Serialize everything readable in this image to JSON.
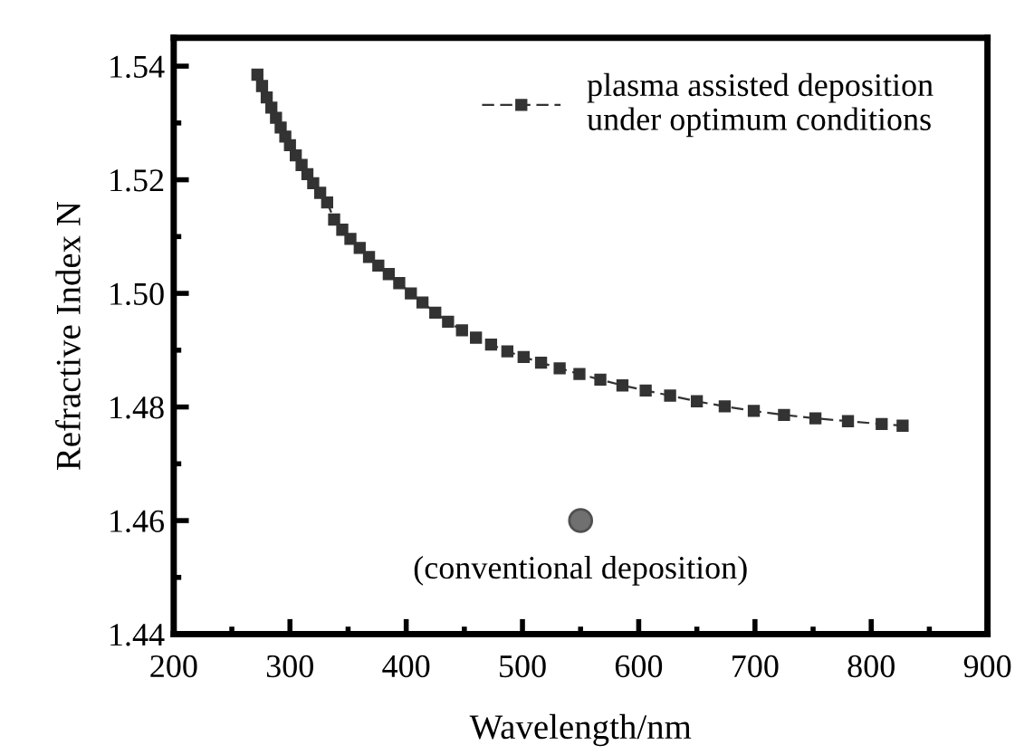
{
  "chart_data": {
    "type": "line",
    "xlabel": "Wavelength/nm",
    "ylabel": "Refractive Index N",
    "series": [
      {
        "name": "plasma assisted deposition\nunder optimum conditions",
        "color": "#333333",
        "marker": "square",
        "line_style": "dashed",
        "x": [
          272,
          276,
          280,
          284,
          288,
          292,
          296,
          300,
          305,
          310,
          315,
          320,
          326,
          332,
          338,
          345,
          352,
          360,
          368,
          376,
          385,
          394,
          404,
          414,
          425,
          436,
          448,
          460,
          473,
          487,
          501,
          516,
          532,
          549,
          567,
          586,
          606,
          627,
          650,
          674,
          699,
          725,
          752,
          780,
          809,
          827
        ],
        "values": [
          1.5385,
          1.5365,
          1.5345,
          1.5327,
          1.5309,
          1.5292,
          1.5276,
          1.5261,
          1.5243,
          1.5226,
          1.521,
          1.5194,
          1.5177,
          1.516,
          1.513,
          1.5112,
          1.5096,
          1.508,
          1.5064,
          1.5049,
          1.5034,
          1.5018,
          1.5,
          1.4984,
          1.4966,
          1.495,
          1.4935,
          1.4922,
          1.491,
          1.4898,
          1.4888,
          1.4878,
          1.4868,
          1.4858,
          1.4848,
          1.4838,
          1.4829,
          1.482,
          1.481,
          1.4801,
          1.4793,
          1.4786,
          1.478,
          1.4775,
          1.477,
          1.4767
        ]
      },
      {
        "type": "scatter",
        "color": "#707070",
        "marker": "circle",
        "x": [
          550
        ],
        "values": [
          1.46
        ]
      }
    ],
    "annotations": [
      {
        "text": "(conventional deposition)",
        "x": 550,
        "y": 1.46
      }
    ],
    "xlim": [
      200,
      900
    ],
    "xticks": [
      200,
      300,
      400,
      500,
      600,
      700,
      800,
      900
    ],
    "ylim": [
      1.44,
      1.545
    ],
    "yticks": [
      {
        "value": 1.44,
        "label": "1.44"
      },
      {
        "value": 1.46,
        "label": "1.46"
      },
      {
        "value": 1.48,
        "label": "1.48"
      },
      {
        "value": 1.5,
        "label": "1.50"
      },
      {
        "value": 1.52,
        "label": "1.52"
      },
      {
        "value": 1.54,
        "label": "1.54"
      }
    ],
    "legend": "top right",
    "grid": false
  }
}
